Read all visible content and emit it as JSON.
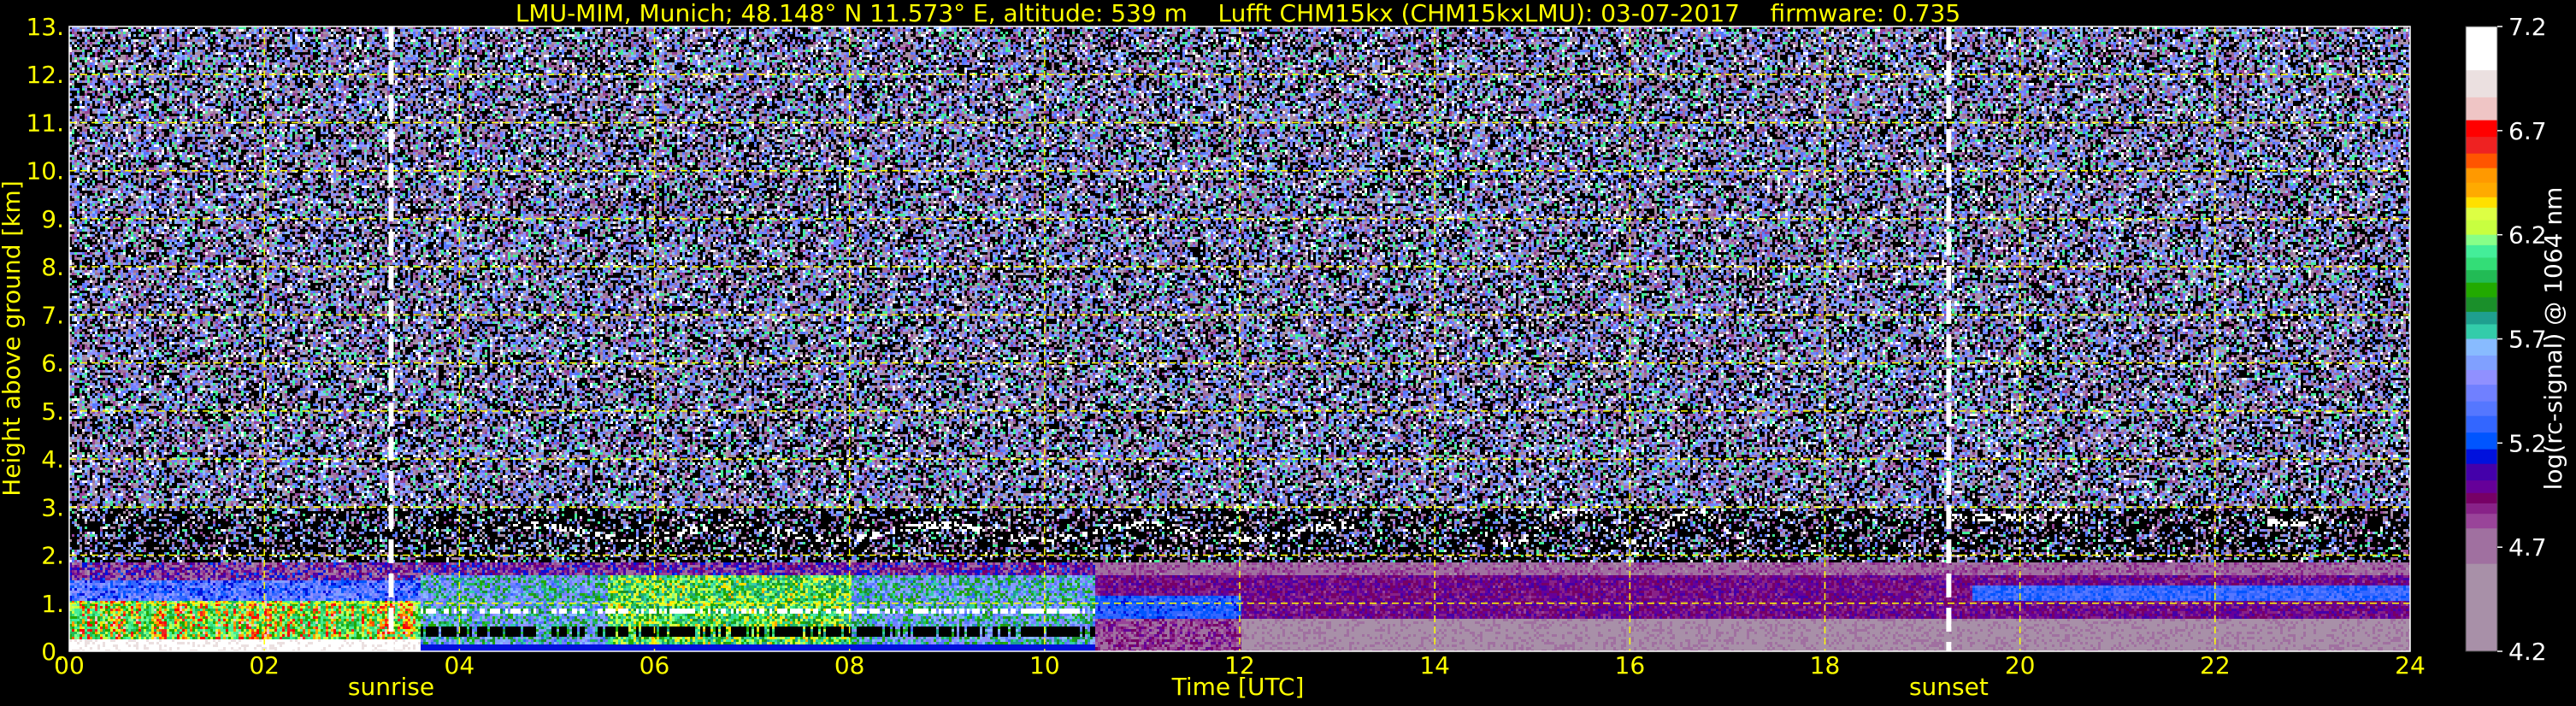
{
  "chart_data": {
    "type": "heatmap",
    "title": "LMU-MIM, Munich; 48.148° N 11.573° E, altitude: 539 m    Lufft CHM15kx (CHM15kxLMU): 03-07-2017    firmware: 0.735",
    "xlabel": "Time [UTC]",
    "ylabel": "Height above ground [km]",
    "xlim": [
      0,
      24
    ],
    "ylim": [
      0,
      13
    ],
    "x_ticks": [
      0,
      2,
      4,
      6,
      8,
      10,
      12,
      14,
      16,
      18,
      20,
      22,
      24
    ],
    "x_tick_labels": [
      "00",
      "02",
      "04",
      "06",
      "08",
      "10",
      "12",
      "14",
      "16",
      "18",
      "20",
      "22",
      "24"
    ],
    "y_ticks": [
      0,
      1,
      2,
      3,
      4,
      5,
      6,
      7,
      8,
      9,
      10,
      11,
      12,
      13
    ],
    "y_tick_labels": [
      "0.",
      "1.",
      "2.",
      "3.",
      "4.",
      "5.",
      "6.",
      "7.",
      "8.",
      "9.",
      "10.",
      "11.",
      "12.",
      "13."
    ],
    "grid": true,
    "grid_color": "#ffff00",
    "markers": [
      {
        "label": "sunrise",
        "time": 3.3
      },
      {
        "label": "sunset",
        "time": 19.27
      }
    ],
    "colorbar": {
      "label": "log(rc-signal) @ 1064 nm",
      "range": [
        4.2,
        7.2
      ],
      "ticks": [
        4.2,
        4.7,
        5.2,
        5.7,
        6.2,
        6.7,
        7.2
      ],
      "tick_labels": [
        "4.2",
        "4.7",
        "5.2",
        "5.7",
        "6.2",
        "6.7",
        "7.2"
      ],
      "bands": [
        {
          "from": 6.99,
          "to": 7.2,
          "color": "#ffffff"
        },
        {
          "from": 6.86,
          "to": 6.99,
          "color": "#ebe0e0"
        },
        {
          "from": 6.75,
          "to": 6.86,
          "color": "#efc5c5"
        },
        {
          "from": 6.67,
          "to": 6.75,
          "color": "#ff0000"
        },
        {
          "from": 6.59,
          "to": 6.67,
          "color": "#ee2222"
        },
        {
          "from": 6.52,
          "to": 6.59,
          "color": "#ff5500"
        },
        {
          "from": 6.45,
          "to": 6.52,
          "color": "#ff9900"
        },
        {
          "from": 6.38,
          "to": 6.45,
          "color": "#ffaa00"
        },
        {
          "from": 6.33,
          "to": 6.38,
          "color": "#ffe000"
        },
        {
          "from": 6.27,
          "to": 6.33,
          "color": "#ddff44"
        },
        {
          "from": 6.2,
          "to": 6.27,
          "color": "#c8ff40"
        },
        {
          "from": 6.15,
          "to": 6.2,
          "color": "#88ff88"
        },
        {
          "from": 6.09,
          "to": 6.15,
          "color": "#44ee99"
        },
        {
          "from": 6.03,
          "to": 6.09,
          "color": "#33dd77"
        },
        {
          "from": 5.97,
          "to": 6.03,
          "color": "#22bb55"
        },
        {
          "from": 5.9,
          "to": 5.97,
          "color": "#22aa00"
        },
        {
          "from": 5.83,
          "to": 5.9,
          "color": "#1a8f2a"
        },
        {
          "from": 5.77,
          "to": 5.83,
          "color": "#1f9f8f"
        },
        {
          "from": 5.7,
          "to": 5.77,
          "color": "#33ccaa"
        },
        {
          "from": 5.62,
          "to": 5.7,
          "color": "#88bbff"
        },
        {
          "from": 5.55,
          "to": 5.62,
          "color": "#80a0ff"
        },
        {
          "from": 5.48,
          "to": 5.55,
          "color": "#9090ff"
        },
        {
          "from": 5.4,
          "to": 5.48,
          "color": "#7080ff"
        },
        {
          "from": 5.33,
          "to": 5.4,
          "color": "#5577ff"
        },
        {
          "from": 5.25,
          "to": 5.33,
          "color": "#3366ff"
        },
        {
          "from": 5.17,
          "to": 5.25,
          "color": "#0055ff"
        },
        {
          "from": 5.1,
          "to": 5.17,
          "color": "#0011dd"
        },
        {
          "from": 5.02,
          "to": 5.1,
          "color": "#4400aa"
        },
        {
          "from": 4.96,
          "to": 5.02,
          "color": "#660099"
        },
        {
          "from": 4.91,
          "to": 4.96,
          "color": "#770066"
        },
        {
          "from": 4.86,
          "to": 4.91,
          "color": "#882288"
        },
        {
          "from": 4.79,
          "to": 4.86,
          "color": "#994499"
        },
        {
          "from": 4.62,
          "to": 4.79,
          "color": "#a070a0"
        },
        {
          "from": 4.2,
          "to": 4.62,
          "color": "#a890a8"
        }
      ]
    }
  }
}
